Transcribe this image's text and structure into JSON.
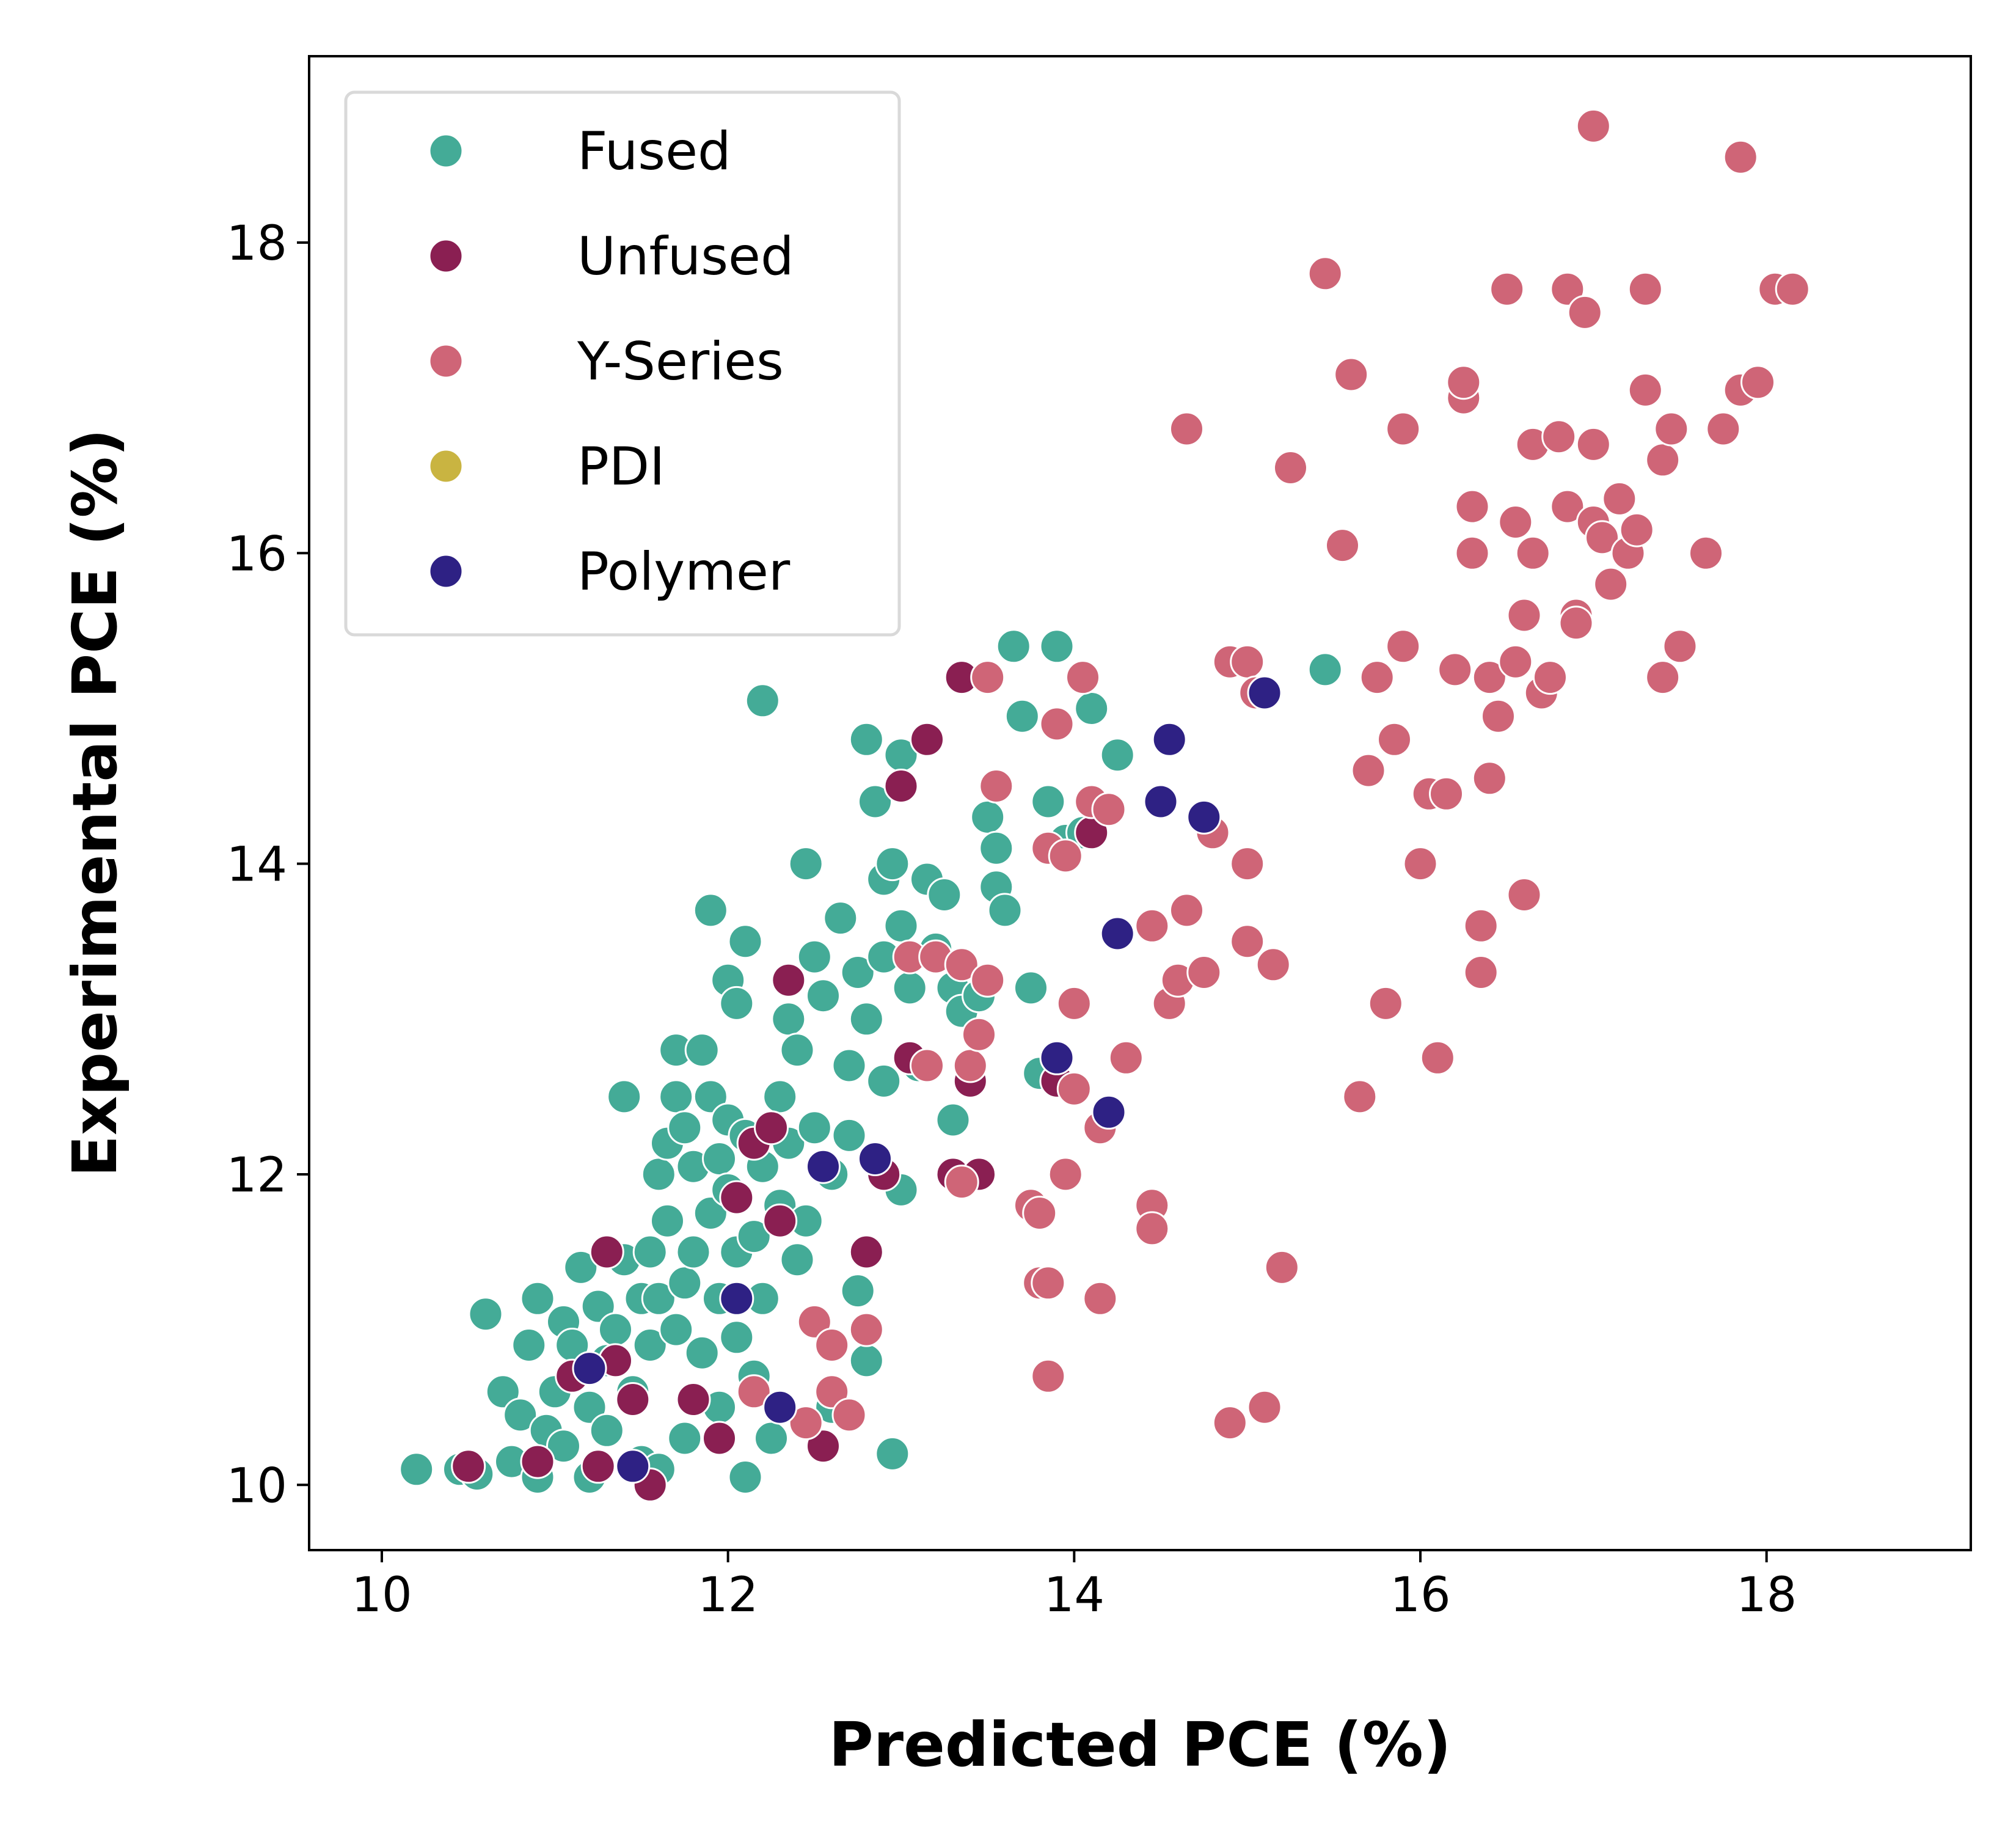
{
  "chart_data": {
    "type": "scatter",
    "xlabel": "Predicted PCE (%)",
    "ylabel": "Experimental PCE (%)",
    "xlim": [
      9.58,
      19.18
    ],
    "ylim": [
      9.58,
      19.2
    ],
    "xticks": [
      10,
      12,
      14,
      16,
      18
    ],
    "yticks": [
      10,
      12,
      14,
      16,
      18
    ],
    "grid": false,
    "legend_position": "top-left",
    "series": [
      {
        "name": "Fused",
        "color": "#44ab97",
        "points": [
          [
            10.2,
            10.1
          ],
          [
            10.45,
            10.1
          ],
          [
            10.55,
            10.07
          ],
          [
            10.6,
            11.1
          ],
          [
            10.7,
            10.6
          ],
          [
            10.75,
            10.15
          ],
          [
            10.8,
            10.45
          ],
          [
            10.85,
            10.9
          ],
          [
            10.9,
            11.2
          ],
          [
            10.9,
            10.05
          ],
          [
            10.95,
            10.35
          ],
          [
            11.0,
            10.6
          ],
          [
            11.05,
            11.05
          ],
          [
            11.05,
            10.25
          ],
          [
            11.1,
            10.9
          ],
          [
            11.15,
            11.4
          ],
          [
            11.2,
            10.5
          ],
          [
            11.2,
            10.05
          ],
          [
            11.25,
            11.15
          ],
          [
            11.3,
            10.8
          ],
          [
            11.3,
            10.35
          ],
          [
            11.35,
            11.0
          ],
          [
            11.4,
            12.5
          ],
          [
            11.4,
            11.45
          ],
          [
            11.45,
            10.6
          ],
          [
            11.5,
            11.2
          ],
          [
            11.5,
            10.15
          ],
          [
            11.55,
            11.5
          ],
          [
            11.55,
            10.9
          ],
          [
            11.6,
            12.0
          ],
          [
            11.6,
            11.2
          ],
          [
            11.6,
            10.1
          ],
          [
            11.65,
            12.2
          ],
          [
            11.65,
            11.7
          ],
          [
            11.7,
            12.8
          ],
          [
            11.7,
            12.5
          ],
          [
            11.7,
            11.0
          ],
          [
            11.75,
            12.3
          ],
          [
            11.75,
            11.3
          ],
          [
            11.75,
            10.3
          ],
          [
            11.8,
            12.05
          ],
          [
            11.8,
            11.5
          ],
          [
            11.85,
            12.8
          ],
          [
            11.85,
            10.85
          ],
          [
            11.9,
            13.7
          ],
          [
            11.9,
            12.5
          ],
          [
            11.9,
            11.75
          ],
          [
            11.95,
            12.1
          ],
          [
            11.95,
            11.2
          ],
          [
            11.95,
            10.5
          ],
          [
            12.0,
            13.25
          ],
          [
            12.0,
            12.35
          ],
          [
            12.0,
            11.9
          ],
          [
            12.05,
            13.1
          ],
          [
            12.05,
            11.5
          ],
          [
            12.05,
            10.95
          ],
          [
            12.1,
            13.5
          ],
          [
            12.1,
            12.25
          ],
          [
            12.1,
            10.05
          ],
          [
            12.15,
            11.6
          ],
          [
            12.15,
            10.7
          ],
          [
            12.2,
            15.05
          ],
          [
            12.2,
            12.05
          ],
          [
            12.2,
            11.2
          ],
          [
            12.25,
            10.3
          ],
          [
            12.3,
            12.5
          ],
          [
            12.3,
            11.8
          ],
          [
            12.35,
            13.0
          ],
          [
            12.35,
            12.2
          ],
          [
            12.4,
            12.8
          ],
          [
            12.4,
            11.45
          ],
          [
            12.45,
            14.0
          ],
          [
            12.45,
            11.7
          ],
          [
            12.5,
            13.4
          ],
          [
            12.5,
            12.3
          ],
          [
            12.55,
            13.15
          ],
          [
            12.6,
            12.0
          ],
          [
            12.6,
            10.5
          ],
          [
            12.65,
            13.65
          ],
          [
            12.7,
            12.7
          ],
          [
            12.7,
            12.25
          ],
          [
            12.75,
            13.3
          ],
          [
            12.75,
            11.25
          ],
          [
            12.8,
            14.8
          ],
          [
            12.8,
            13.0
          ],
          [
            12.8,
            10.8
          ],
          [
            12.85,
            14.4
          ],
          [
            12.9,
            13.9
          ],
          [
            12.9,
            13.4
          ],
          [
            12.9,
            12.6
          ],
          [
            12.95,
            14.0
          ],
          [
            12.95,
            10.2
          ],
          [
            13.0,
            14.7
          ],
          [
            13.0,
            13.6
          ],
          [
            13.0,
            11.9
          ],
          [
            13.05,
            13.2
          ],
          [
            13.1,
            12.7
          ],
          [
            13.15,
            13.9
          ],
          [
            13.2,
            13.45
          ],
          [
            13.25,
            13.8
          ],
          [
            13.3,
            13.2
          ],
          [
            13.3,
            12.35
          ],
          [
            13.35,
            13.05
          ],
          [
            13.45,
            13.15
          ],
          [
            13.5,
            14.3
          ],
          [
            13.55,
            14.1
          ],
          [
            13.55,
            13.85
          ],
          [
            13.6,
            13.7
          ],
          [
            13.65,
            15.4
          ],
          [
            13.7,
            14.95
          ],
          [
            13.75,
            13.2
          ],
          [
            13.8,
            12.65
          ],
          [
            13.85,
            14.4
          ],
          [
            13.9,
            15.4
          ],
          [
            13.95,
            14.15
          ],
          [
            14.05,
            14.2
          ],
          [
            14.1,
            15.0
          ],
          [
            14.25,
            14.7
          ],
          [
            15.45,
            15.25
          ]
        ]
      },
      {
        "name": "Unfused",
        "color": "#8a1f52",
        "points": [
          [
            10.5,
            10.12
          ],
          [
            10.9,
            10.15
          ],
          [
            11.1,
            10.7
          ],
          [
            11.25,
            10.12
          ],
          [
            11.3,
            11.5
          ],
          [
            11.35,
            10.8
          ],
          [
            11.45,
            10.55
          ],
          [
            11.55,
            10.0
          ],
          [
            11.8,
            10.55
          ],
          [
            11.95,
            10.3
          ],
          [
            12.05,
            11.85
          ],
          [
            12.15,
            12.2
          ],
          [
            12.25,
            12.3
          ],
          [
            12.3,
            11.7
          ],
          [
            12.35,
            13.25
          ],
          [
            12.55,
            10.25
          ],
          [
            12.8,
            11.5
          ],
          [
            12.9,
            12.0
          ],
          [
            13.0,
            14.5
          ],
          [
            13.05,
            12.75
          ],
          [
            13.15,
            14.8
          ],
          [
            13.3,
            12.0
          ],
          [
            13.35,
            15.2
          ],
          [
            13.4,
            12.6
          ],
          [
            13.45,
            12.0
          ],
          [
            13.9,
            12.6
          ],
          [
            14.1,
            14.2
          ]
        ]
      },
      {
        "name": "Y-Series",
        "color": "#cf6577",
        "points": [
          [
            12.15,
            10.6
          ],
          [
            12.45,
            10.4
          ],
          [
            12.5,
            11.05
          ],
          [
            12.6,
            10.6
          ],
          [
            12.6,
            10.9
          ],
          [
            12.7,
            10.45
          ],
          [
            12.8,
            11.0
          ],
          [
            13.05,
            13.4
          ],
          [
            13.15,
            12.7
          ],
          [
            13.2,
            13.4
          ],
          [
            13.35,
            13.35
          ],
          [
            13.35,
            11.95
          ],
          [
            13.4,
            12.7
          ],
          [
            13.45,
            12.9
          ],
          [
            13.5,
            13.25
          ],
          [
            13.5,
            15.2
          ],
          [
            13.55,
            14.5
          ],
          [
            13.75,
            11.8
          ],
          [
            13.8,
            11.75
          ],
          [
            13.8,
            11.3
          ],
          [
            13.85,
            11.3
          ],
          [
            13.85,
            10.7
          ],
          [
            13.85,
            14.1
          ],
          [
            13.9,
            14.9
          ],
          [
            13.95,
            12.0
          ],
          [
            13.95,
            14.05
          ],
          [
            14.0,
            13.1
          ],
          [
            14.0,
            12.55
          ],
          [
            14.05,
            15.2
          ],
          [
            14.1,
            14.4
          ],
          [
            14.15,
            12.3
          ],
          [
            14.15,
            11.2
          ],
          [
            14.2,
            14.35
          ],
          [
            14.3,
            12.75
          ],
          [
            14.45,
            13.6
          ],
          [
            14.45,
            11.8
          ],
          [
            14.45,
            11.65
          ],
          [
            14.55,
            13.1
          ],
          [
            14.6,
            13.25
          ],
          [
            14.65,
            13.7
          ],
          [
            14.65,
            16.8
          ],
          [
            14.75,
            13.3
          ],
          [
            14.8,
            14.2
          ],
          [
            14.9,
            15.3
          ],
          [
            14.9,
            10.4
          ],
          [
            15.0,
            13.5
          ],
          [
            15.0,
            14.0
          ],
          [
            15.0,
            15.3
          ],
          [
            15.05,
            15.1
          ],
          [
            15.1,
            10.5
          ],
          [
            15.15,
            13.35
          ],
          [
            15.2,
            11.4
          ],
          [
            15.25,
            16.55
          ],
          [
            15.45,
            17.8
          ],
          [
            15.55,
            16.05
          ],
          [
            15.6,
            17.15
          ],
          [
            15.65,
            12.5
          ],
          [
            15.7,
            14.6
          ],
          [
            15.75,
            15.2
          ],
          [
            15.8,
            13.1
          ],
          [
            15.85,
            14.8
          ],
          [
            15.9,
            15.4
          ],
          [
            15.9,
            16.8
          ],
          [
            16.0,
            14.0
          ],
          [
            16.05,
            14.45
          ],
          [
            16.1,
            12.75
          ],
          [
            16.15,
            14.45
          ],
          [
            16.2,
            15.25
          ],
          [
            16.25,
            17.0
          ],
          [
            16.25,
            17.1
          ],
          [
            16.3,
            16.3
          ],
          [
            16.3,
            16.0
          ],
          [
            16.35,
            13.6
          ],
          [
            16.35,
            13.3
          ],
          [
            16.4,
            15.2
          ],
          [
            16.4,
            14.55
          ],
          [
            16.45,
            14.95
          ],
          [
            16.5,
            17.7
          ],
          [
            16.55,
            16.2
          ],
          [
            16.55,
            15.3
          ],
          [
            16.6,
            15.6
          ],
          [
            16.6,
            13.8
          ],
          [
            16.65,
            16.7
          ],
          [
            16.65,
            16.0
          ],
          [
            16.7,
            15.1
          ],
          [
            16.75,
            15.2
          ],
          [
            16.8,
            16.75
          ],
          [
            16.85,
            17.7
          ],
          [
            16.85,
            16.3
          ],
          [
            16.9,
            15.6
          ],
          [
            16.9,
            15.55
          ],
          [
            16.95,
            17.55
          ],
          [
            17.0,
            16.7
          ],
          [
            17.0,
            16.2
          ],
          [
            17.05,
            16.1
          ],
          [
            17.1,
            15.8
          ],
          [
            17.15,
            16.35
          ],
          [
            17.2,
            16.0
          ],
          [
            17.25,
            16.15
          ],
          [
            17.3,
            17.7
          ],
          [
            17.3,
            17.05
          ],
          [
            17.4,
            15.2
          ],
          [
            17.4,
            16.6
          ],
          [
            17.45,
            16.8
          ],
          [
            17.5,
            15.4
          ],
          [
            17.65,
            16.0
          ],
          [
            17.75,
            16.8
          ],
          [
            17.85,
            17.05
          ],
          [
            17.95,
            17.1
          ],
          [
            18.05,
            17.7
          ],
          [
            18.15,
            17.7
          ],
          [
            17.0,
            18.75
          ],
          [
            17.85,
            18.55
          ]
        ]
      },
      {
        "name": "PDI",
        "color": "#c9b441",
        "points": []
      },
      {
        "name": "Polymer",
        "color": "#2e2184",
        "points": [
          [
            11.2,
            10.75
          ],
          [
            11.45,
            10.12
          ],
          [
            12.05,
            11.2
          ],
          [
            12.3,
            10.5
          ],
          [
            12.55,
            12.05
          ],
          [
            12.85,
            12.1
          ],
          [
            13.9,
            12.75
          ],
          [
            14.2,
            12.4
          ],
          [
            14.25,
            13.55
          ],
          [
            14.5,
            14.4
          ],
          [
            14.55,
            14.8
          ],
          [
            14.75,
            14.3
          ],
          [
            15.1,
            15.1
          ]
        ]
      }
    ]
  }
}
